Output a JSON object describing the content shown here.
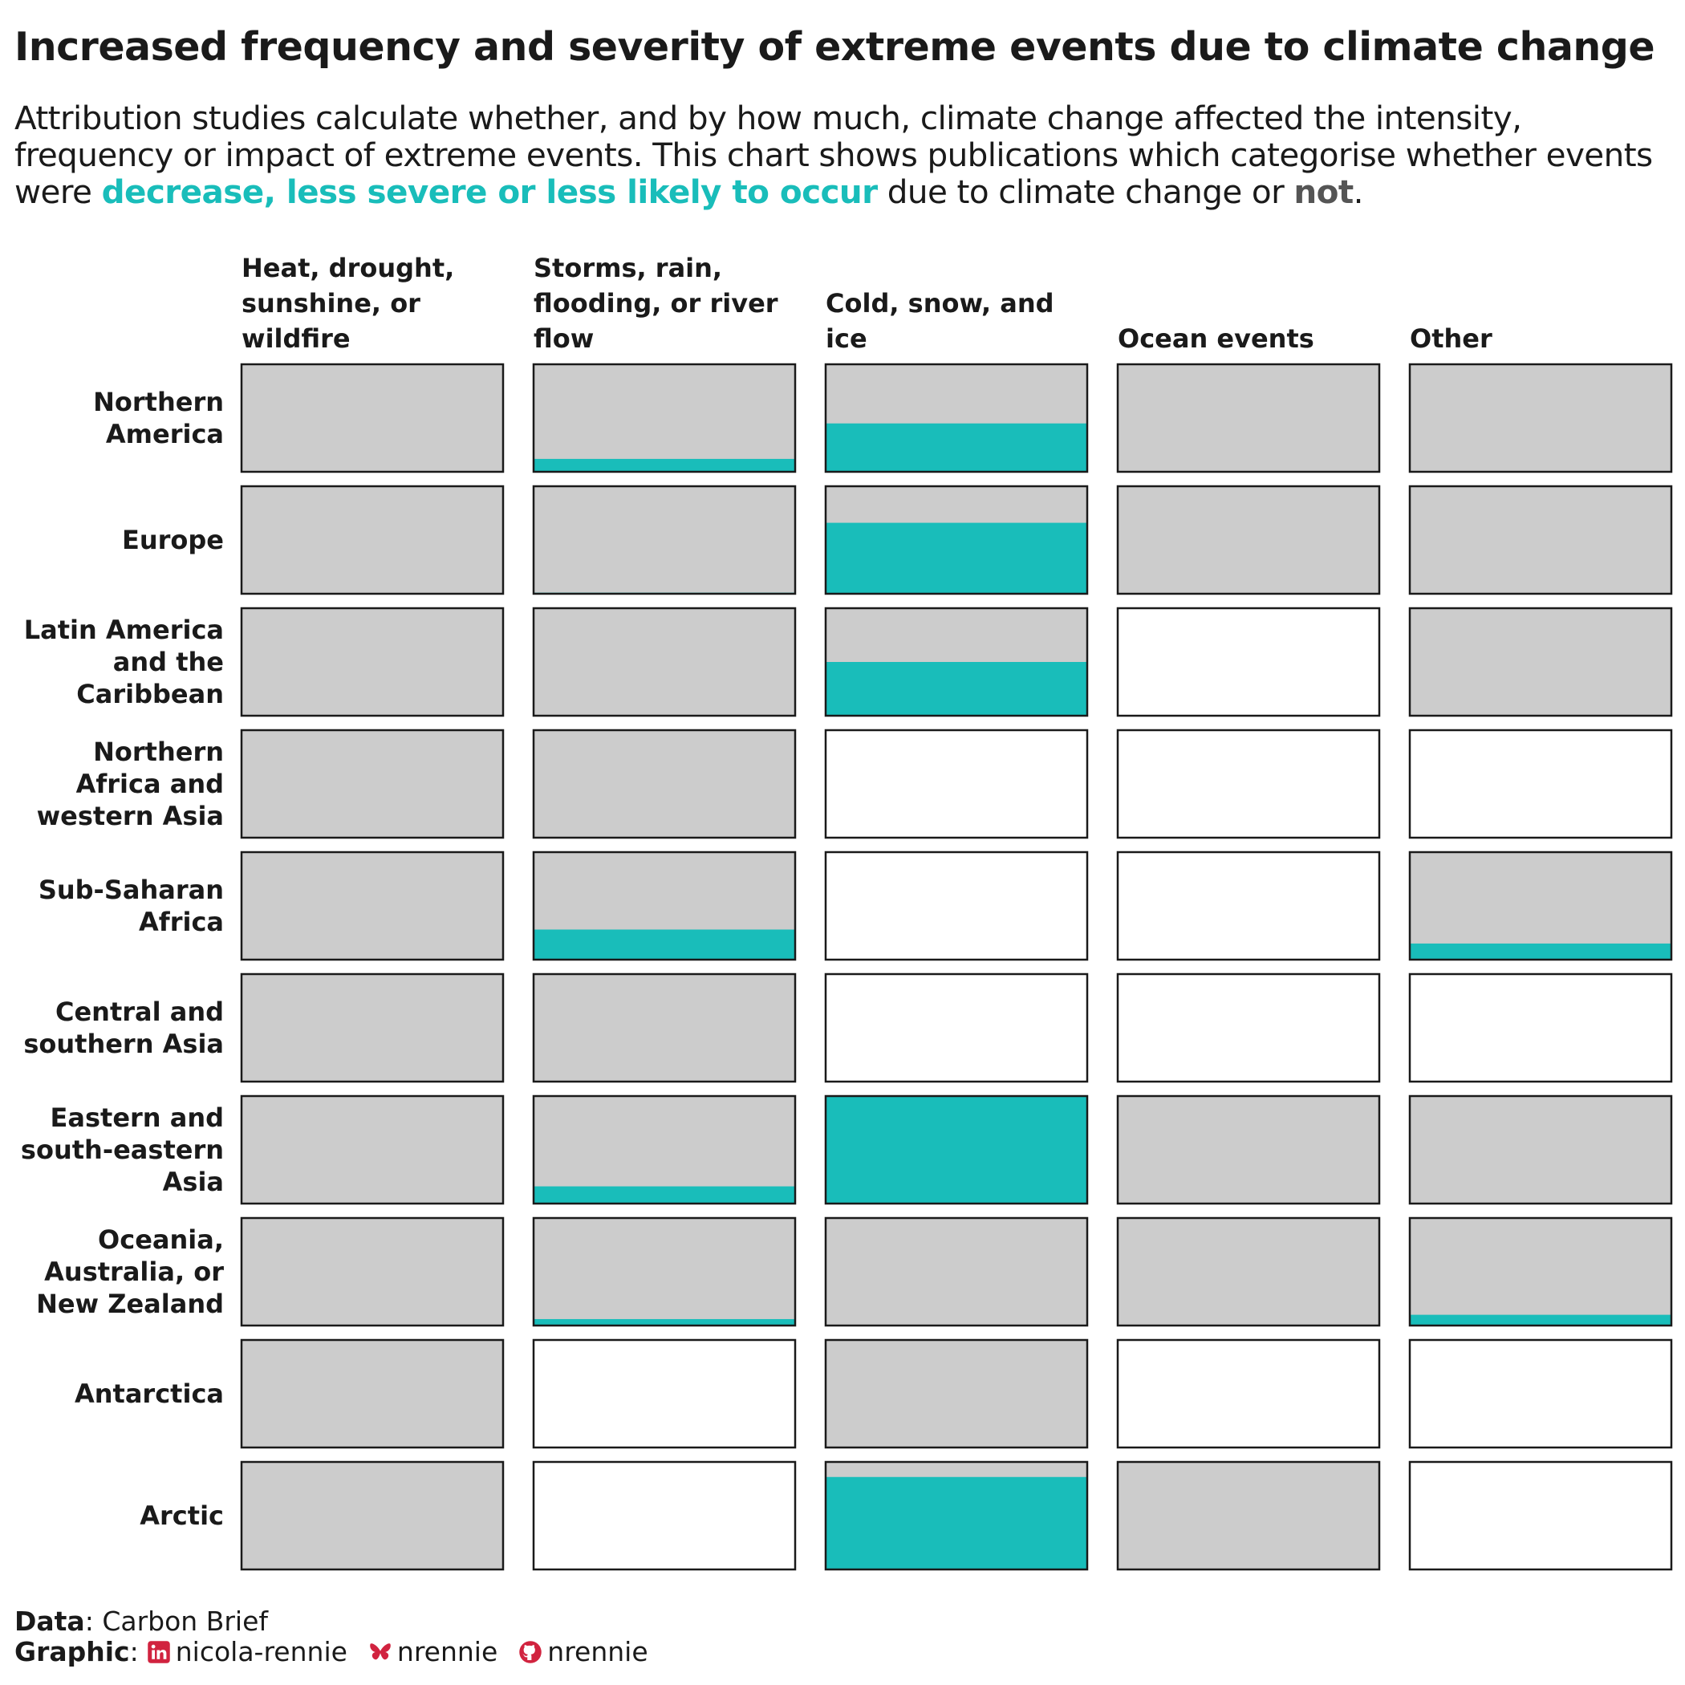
{
  "title": "Increased frequency and severity of extreme events due to climate change",
  "subtitle": {
    "part1": "Attribution studies calculate whether, and by how much, climate change affected the intensity, frequency or impact of extreme events. This chart shows publications which categorise whether events were ",
    "highlight_decrease": "decrease, less severe or less likely to occur",
    "part2": " due to climate change or ",
    "highlight_not": "not",
    "part3": "."
  },
  "colors": {
    "decrease": "#19bdba",
    "not": "#cccccc",
    "no_data": "#ffffff",
    "border": "#1a1a1a"
  },
  "chart_data": {
    "type": "heatmap",
    "encoding": "Each cell is filled from the bottom by the share of publications finding events decreased / less severe / less likely (teal); the remainder is 'not' (grey). Cells with no publications are white.",
    "columns": [
      "Heat, drought, sunshine, or wildfire",
      "Storms, rain, flooding, or river flow",
      "Cold, snow, and ice",
      "Ocean events",
      "Other"
    ],
    "rows": [
      "Northern America",
      "Europe",
      "Latin America and the Caribbean",
      "Northern Africa and western Asia",
      "Sub-Saharan Africa",
      "Central and southern Asia",
      "Eastern and south-eastern Asia",
      "Oceania, Australia, or New Zealand",
      "Antarctica",
      "Arctic"
    ],
    "decrease_share": [
      [
        0.0,
        0.12,
        0.45,
        0.0,
        0.0
      ],
      [
        0.0,
        0.01,
        0.66,
        0.0,
        0.0
      ],
      [
        0.0,
        0.0,
        0.5,
        null,
        0.0
      ],
      [
        0.0,
        0.0,
        null,
        null,
        null
      ],
      [
        0.0,
        0.28,
        null,
        null,
        0.15
      ],
      [
        0.0,
        0.0,
        null,
        null,
        null
      ],
      [
        0.0,
        0.16,
        1.0,
        0.0,
        0.0
      ],
      [
        0.0,
        0.06,
        0.0,
        0.0,
        0.1
      ],
      [
        0.0,
        null,
        0.0,
        null,
        null
      ],
      [
        0.0,
        null,
        0.86,
        0.0,
        null
      ]
    ]
  },
  "caption": {
    "data_label": "Data",
    "data_source": ": Carbon Brief",
    "graphic_label": "Graphic",
    "graphic_colon": ":",
    "linkedin_icon": "linkedin-icon",
    "linkedin_handle": "nicola-rennie",
    "bluesky_icon": "bluesky-butterfly-icon",
    "bluesky_handle": "nrennie",
    "github_icon": "github-icon",
    "github_handle": "nrennie"
  }
}
